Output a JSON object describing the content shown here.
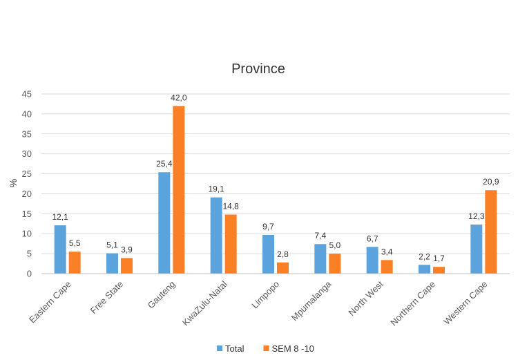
{
  "chart_data": {
    "type": "bar",
    "title": "Province",
    "xlabel": "",
    "ylabel": "%",
    "ylim": [
      0,
      45
    ],
    "yticks": [
      0,
      5,
      10,
      15,
      20,
      25,
      30,
      35,
      40,
      45
    ],
    "grid": true,
    "legend_position": "bottom",
    "categories": [
      "Eastern Cape",
      "Free State",
      "Gauteng",
      "KwaZulu-Natal",
      "Limpopo",
      "Mpumalanga",
      "North West",
      "Northern Cape",
      "Western Cape"
    ],
    "series": [
      {
        "name": "Total",
        "color": "#5BA3DD",
        "values": [
          12.1,
          5.1,
          25.4,
          19.1,
          9.7,
          7.4,
          6.7,
          2.2,
          12.3
        ],
        "labels": [
          "12,1",
          "5,1",
          "25,4",
          "19,1",
          "9,7",
          "7,4",
          "6,7",
          "2,2",
          "12,3"
        ]
      },
      {
        "name": "SEM 8 -10",
        "color": "#FB7F24",
        "values": [
          5.5,
          3.9,
          42.0,
          14.8,
          2.8,
          5.0,
          3.4,
          1.7,
          20.9
        ],
        "labels": [
          "5,5",
          "3,9",
          "42,0",
          "14,8",
          "2,8",
          "5,0",
          "3,4",
          "1,7",
          "20,9"
        ]
      }
    ]
  }
}
